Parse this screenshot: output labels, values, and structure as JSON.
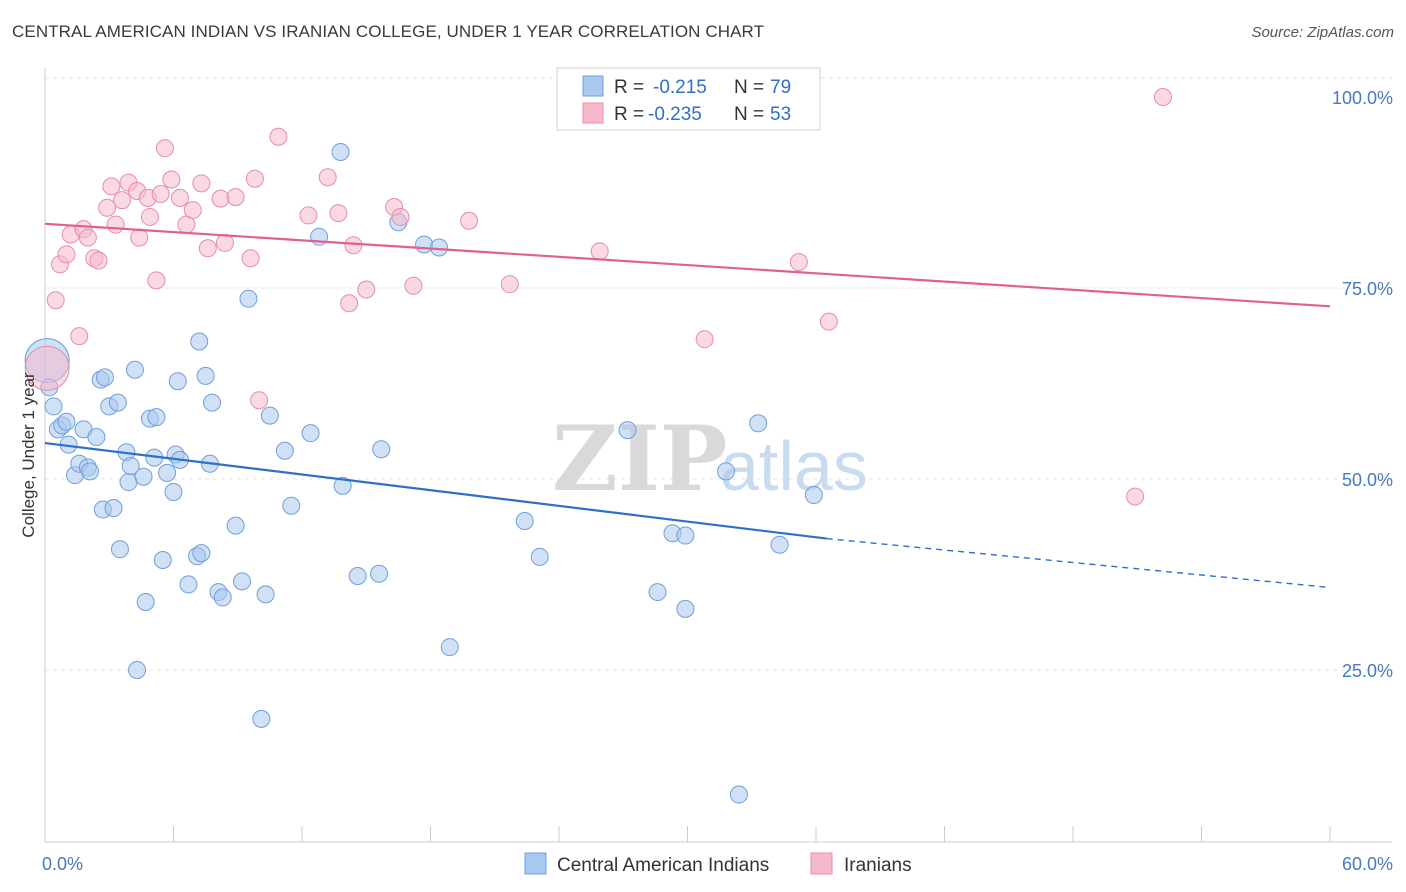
{
  "title": "CENTRAL AMERICAN INDIAN VS IRANIAN COLLEGE, UNDER 1 YEAR CORRELATION CHART",
  "source": "Source: ZipAtlas.com",
  "watermark": {
    "zip": "ZIP",
    "atlas": "atlas"
  },
  "legend": {
    "r_label": "R =",
    "n_label": "N =",
    "series": [
      {
        "r": "-0.215",
        "n": "79"
      },
      {
        "r": "-0.235",
        "n": "53"
      }
    ]
  },
  "bottom_legend": [
    "Central American Indians",
    "Iranians"
  ],
  "chart_data": {
    "type": "scatter",
    "title": "CENTRAL AMERICAN INDIAN VS IRANIAN COLLEGE, UNDER 1 YEAR CORRELATION CHART",
    "xlabel": "",
    "ylabel": "College, Under 1 year",
    "xlim": [
      0,
      60
    ],
    "ylim": [
      0,
      104
    ],
    "x_tick_labels": [
      "0.0%",
      "60.0%"
    ],
    "y_ticks": [
      25,
      50,
      75,
      100
    ],
    "y_tick_labels": [
      "25.0%",
      "50.0%",
      "75.0%",
      "100.0%"
    ],
    "grid": true,
    "legend_position": "top-center",
    "colors": {
      "Central American Indians": {
        "fill": "#a9c8ef",
        "stroke": "#6f9fd9",
        "line": "#2d6fcb"
      },
      "Iranians": {
        "fill": "#f6b9cc",
        "stroke": "#e58ea9",
        "line": "#e0628a"
      }
    },
    "series": [
      {
        "name": "Central American Indians",
        "points": [
          [
            0.1,
            65.5
          ],
          [
            0.2,
            62
          ],
          [
            0.4,
            59.5
          ],
          [
            0.6,
            56.5
          ],
          [
            0.8,
            57
          ],
          [
            1,
            57.5
          ],
          [
            1.1,
            54.5
          ],
          [
            1.4,
            50.5
          ],
          [
            1.6,
            52
          ],
          [
            1.8,
            56.5
          ],
          [
            2,
            51.5
          ],
          [
            2.1,
            51
          ],
          [
            2.4,
            55.5
          ],
          [
            2.6,
            63
          ],
          [
            2.7,
            46
          ],
          [
            2.8,
            63.3
          ],
          [
            3,
            59.5
          ],
          [
            3.2,
            46.2
          ],
          [
            3.4,
            60
          ],
          [
            3.5,
            40.8
          ],
          [
            3.8,
            53.5
          ],
          [
            3.9,
            49.6
          ],
          [
            4,
            51.7
          ],
          [
            4.2,
            64.3
          ],
          [
            4.3,
            25
          ],
          [
            4.6,
            50.3
          ],
          [
            4.7,
            33.9
          ],
          [
            4.9,
            57.9
          ],
          [
            5.1,
            52.8
          ],
          [
            5.2,
            58.1
          ],
          [
            5.5,
            39.4
          ],
          [
            5.7,
            50.8
          ],
          [
            6,
            48.3
          ],
          [
            6.1,
            53.2
          ],
          [
            6.2,
            62.8
          ],
          [
            6.3,
            52.5
          ],
          [
            6.7,
            36.2
          ],
          [
            7.1,
            39.9
          ],
          [
            7.2,
            68
          ],
          [
            7.3,
            40.3
          ],
          [
            7.5,
            63.5
          ],
          [
            7.7,
            52
          ],
          [
            7.8,
            60
          ],
          [
            8.1,
            35.2
          ],
          [
            8.3,
            34.5
          ],
          [
            8.9,
            43.9
          ],
          [
            9.2,
            36.6
          ],
          [
            9.5,
            73.6
          ],
          [
            10.1,
            18.6
          ],
          [
            10.3,
            34.9
          ],
          [
            10.5,
            58.3
          ],
          [
            11.2,
            53.7
          ],
          [
            11.5,
            46.5
          ],
          [
            12.4,
            56
          ],
          [
            12.8,
            81.7
          ],
          [
            13.8,
            92.8
          ],
          [
            13.9,
            49.1
          ],
          [
            14.6,
            37.3
          ],
          [
            15.6,
            37.6
          ],
          [
            15.7,
            53.9
          ],
          [
            16.5,
            83.6
          ],
          [
            17.7,
            80.7
          ],
          [
            18.4,
            80.3
          ],
          [
            18.9,
            28
          ],
          [
            22.4,
            44.5
          ],
          [
            23.1,
            39.8
          ],
          [
            27.2,
            56.4
          ],
          [
            28.6,
            35.2
          ],
          [
            29.3,
            42.9
          ],
          [
            29.9,
            42.6
          ],
          [
            29.9,
            33
          ],
          [
            31.8,
            51
          ],
          [
            32.4,
            8.7
          ],
          [
            33.3,
            57.3
          ],
          [
            34.3,
            41.4
          ],
          [
            35.9,
            47.9
          ]
        ],
        "trend": {
          "x0": 0,
          "y0": 54.7,
          "x1": 36.5,
          "y1": 42.2,
          "dash_to": 60,
          "dash_y": 35.8
        }
      },
      {
        "name": "Iranians",
        "points": [
          [
            0.1,
            64.5
          ],
          [
            0.5,
            73.4
          ],
          [
            0.7,
            78.1
          ],
          [
            1,
            79.4
          ],
          [
            1.2,
            82
          ],
          [
            1.6,
            68.7
          ],
          [
            1.8,
            82.7
          ],
          [
            2,
            81.6
          ],
          [
            2.3,
            78.9
          ],
          [
            2.5,
            78.6
          ],
          [
            2.9,
            85.5
          ],
          [
            3.1,
            88.3
          ],
          [
            3.3,
            83.3
          ],
          [
            3.6,
            86.5
          ],
          [
            3.9,
            88.8
          ],
          [
            4.3,
            87.7
          ],
          [
            4.4,
            81.6
          ],
          [
            4.8,
            86.8
          ],
          [
            4.9,
            84.3
          ],
          [
            5.2,
            76
          ],
          [
            5.4,
            87.3
          ],
          [
            5.6,
            93.3
          ],
          [
            5.9,
            89.2
          ],
          [
            6.3,
            86.8
          ],
          [
            6.6,
            83.3
          ],
          [
            6.9,
            85.2
          ],
          [
            7.3,
            88.7
          ],
          [
            7.6,
            80.2
          ],
          [
            8.2,
            86.7
          ],
          [
            8.4,
            80.9
          ],
          [
            8.9,
            86.9
          ],
          [
            9.6,
            78.9
          ],
          [
            9.8,
            89.3
          ],
          [
            10,
            60.3
          ],
          [
            10.9,
            94.8
          ],
          [
            12.3,
            84.5
          ],
          [
            13.2,
            89.5
          ],
          [
            13.7,
            84.8
          ],
          [
            14.2,
            73
          ],
          [
            14.4,
            80.6
          ],
          [
            15,
            74.8
          ],
          [
            16.3,
            85.6
          ],
          [
            16.6,
            84.3
          ],
          [
            17.2,
            75.3
          ],
          [
            19.8,
            83.8
          ],
          [
            21.7,
            75.5
          ],
          [
            25.9,
            79.8
          ],
          [
            30.8,
            68.3
          ],
          [
            35.2,
            78.4
          ],
          [
            36.6,
            70.6
          ],
          [
            50.9,
            47.7
          ],
          [
            52.2,
            100
          ]
        ],
        "trend": {
          "x0": 0,
          "y0": 83.4,
          "x1": 60,
          "y1": 72.6
        }
      }
    ]
  }
}
